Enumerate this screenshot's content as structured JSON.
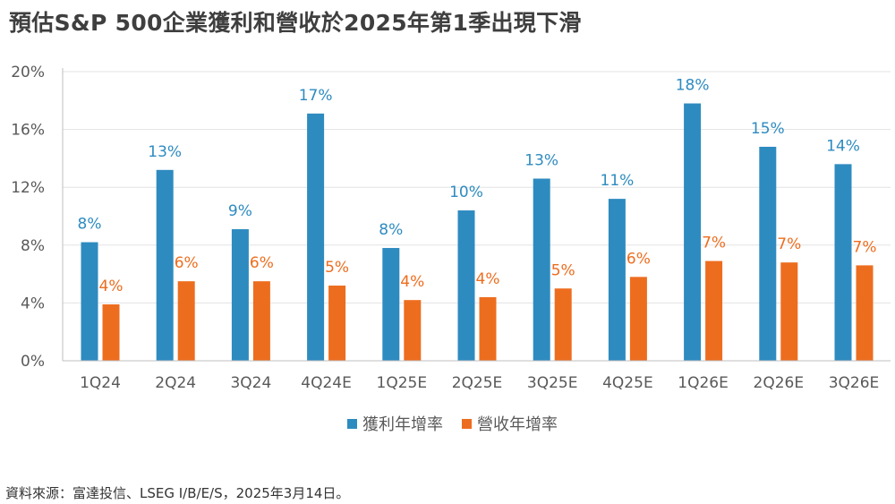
{
  "title": "預估S&P 500企業獲利和營收於2025年第1季出現下滑",
  "source": "資料來源：富達投信、LSEG I/B/E/S，2025年3月14日。",
  "colors": {
    "earnings": "#2e8bc0",
    "revenue": "#ed6d1f",
    "axis": "#bfbfbf",
    "grid": "#e3e3e3"
  },
  "chart_data": {
    "type": "bar",
    "title": "預估S&P 500企業獲利和營收於2025年第1季出現下滑",
    "xlabel": "",
    "ylabel": "",
    "ylim": [
      0,
      20
    ],
    "yticks": [
      0,
      4,
      8,
      12,
      16,
      20
    ],
    "ytick_labels": [
      "0%",
      "4%",
      "8%",
      "12%",
      "16%",
      "20%"
    ],
    "grid": "horizontal",
    "legend_position": "bottom",
    "categories": [
      "1Q24",
      "2Q24",
      "3Q24",
      "4Q24E",
      "1Q25E",
      "2Q25E",
      "3Q25E",
      "4Q25E",
      "1Q26E",
      "2Q26E",
      "3Q26E"
    ],
    "series": [
      {
        "name": "獲利年增率",
        "color": "#2e8bc0",
        "values": [
          8.2,
          13.2,
          9.1,
          17.1,
          7.8,
          10.4,
          12.6,
          11.2,
          17.8,
          14.8,
          13.6
        ],
        "labels": [
          "8%",
          "13%",
          "9%",
          "17%",
          "8%",
          "10%",
          "13%",
          "11%",
          "18%",
          "15%",
          "14%"
        ]
      },
      {
        "name": "營收年增率",
        "color": "#ed6d1f",
        "values": [
          3.9,
          5.5,
          5.5,
          5.2,
          4.2,
          4.4,
          5.0,
          5.8,
          6.9,
          6.8,
          6.6
        ],
        "labels": [
          "4%",
          "6%",
          "6%",
          "5%",
          "4%",
          "4%",
          "5%",
          "6%",
          "7%",
          "7%",
          "7%"
        ]
      }
    ]
  }
}
